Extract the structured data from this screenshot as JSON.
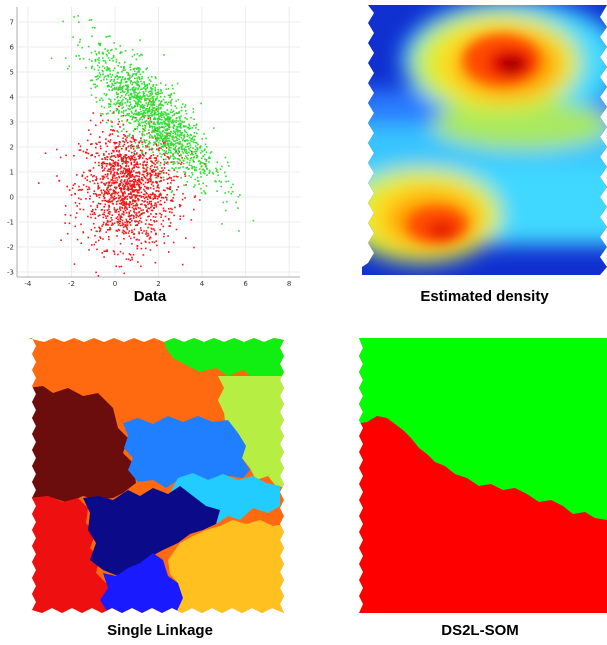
{
  "panels": {
    "data": {
      "caption": "Data",
      "x_ticks": [
        "-4",
        "-2",
        "0",
        "2",
        "4",
        "6",
        "8"
      ],
      "y_ticks": [
        "7",
        "6",
        "5",
        "4",
        "3",
        "2",
        "1",
        "0",
        "-1",
        "-2",
        "-3"
      ],
      "colors": {
        "red": "#ee1b1b",
        "green": "#33dd33"
      }
    },
    "density": {
      "caption": "Estimated density"
    },
    "single_linkage": {
      "caption": "Single Linkage"
    },
    "ds2l_som": {
      "caption": "DS2L-SOM",
      "colors": {
        "red": "#ff0000",
        "green": "#00ff00"
      }
    }
  },
  "chart_data": {
    "type": "scatter",
    "xlim": [
      -4.5,
      8.5
    ],
    "ylim": [
      -3.2,
      7.6
    ],
    "grid": true,
    "series": [
      {
        "color": "#ee1b1b",
        "center": [
          0.6,
          0.4
        ],
        "spread": [
          1.1,
          1.2
        ],
        "count": 1500
      },
      {
        "color": "#33dd33",
        "center": [
          1.7,
          3.3
        ],
        "spread": [
          1.4,
          1.3
        ],
        "correlation": -0.8,
        "count": 1500
      }
    ]
  }
}
